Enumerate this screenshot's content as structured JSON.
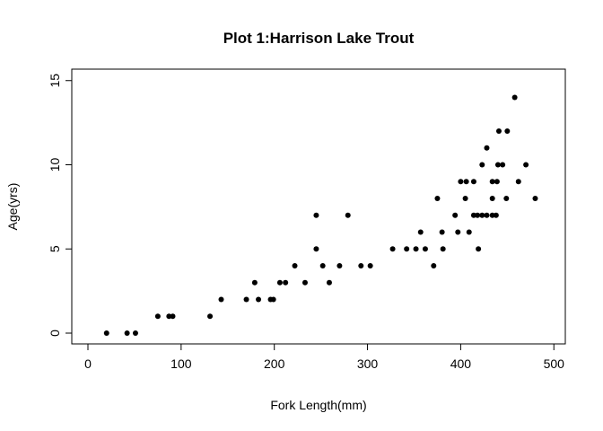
{
  "chart_data": {
    "type": "scatter",
    "title": "Plot 1:Harrison Lake Trout",
    "xlabel": "Fork Length(mm)",
    "ylabel": "Age(yrs)",
    "xlim": [
      0,
      500
    ],
    "ylim": [
      0,
      15
    ],
    "x_ticks": [
      "0",
      "100",
      "200",
      "300",
      "400",
      "500"
    ],
    "y_ticks": [
      "0",
      "5",
      "10",
      "15"
    ],
    "grid": false,
    "marker_color": "#000000",
    "series": [
      {
        "points": [
          [
            20,
            0
          ],
          [
            42,
            0
          ],
          [
            51,
            0
          ],
          [
            75,
            1
          ],
          [
            87,
            1
          ],
          [
            91,
            1
          ],
          [
            131,
            1
          ],
          [
            143,
            2
          ],
          [
            170,
            2
          ],
          [
            179,
            3
          ],
          [
            183,
            2
          ],
          [
            196,
            2
          ],
          [
            199,
            2
          ],
          [
            206,
            3
          ],
          [
            212,
            3
          ],
          [
            222,
            4
          ],
          [
            233,
            3
          ],
          [
            245,
            7
          ],
          [
            245,
            5
          ],
          [
            252,
            4
          ],
          [
            259,
            3
          ],
          [
            270,
            4
          ],
          [
            279,
            7
          ],
          [
            293,
            4
          ],
          [
            303,
            4
          ],
          [
            327,
            5
          ],
          [
            342,
            5
          ],
          [
            352,
            5
          ],
          [
            357,
            6
          ],
          [
            362,
            5
          ],
          [
            371,
            4
          ],
          [
            375,
            8
          ],
          [
            380,
            6
          ],
          [
            381,
            5
          ],
          [
            394,
            7
          ],
          [
            397,
            6
          ],
          [
            400,
            9
          ],
          [
            405,
            8
          ],
          [
            406,
            9
          ],
          [
            409,
            6
          ],
          [
            414,
            9
          ],
          [
            414,
            7
          ],
          [
            418,
            7
          ],
          [
            419,
            5
          ],
          [
            423,
            10
          ],
          [
            423,
            7
          ],
          [
            428,
            11
          ],
          [
            428,
            7
          ],
          [
            434,
            9
          ],
          [
            434,
            8
          ],
          [
            434,
            7
          ],
          [
            438,
            7
          ],
          [
            439,
            9
          ],
          [
            440,
            10
          ],
          [
            441,
            12
          ],
          [
            445,
            10
          ],
          [
            449,
            8
          ],
          [
            450,
            12
          ],
          [
            458,
            14
          ],
          [
            462,
            9
          ],
          [
            470,
            10
          ],
          [
            480,
            8
          ]
        ]
      }
    ]
  }
}
